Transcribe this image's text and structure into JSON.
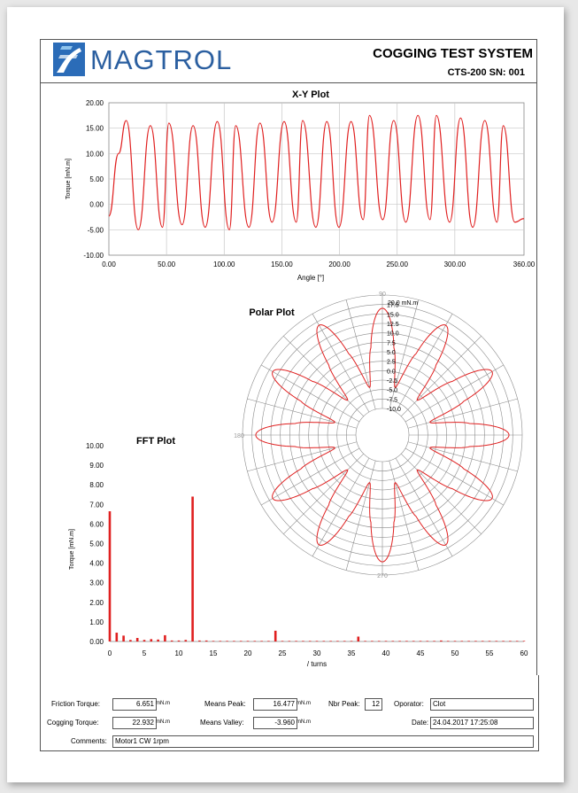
{
  "header": {
    "brand": "MAGTROL",
    "system_title": "COGGING TEST SYSTEM",
    "system_subtitle": "CTS-200  SN: 001"
  },
  "colors": {
    "brand_blue": "#2b5fa0",
    "curve_red": "#e02020",
    "grid": "#c8c8c8"
  },
  "xy_plot": {
    "title": "X-Y Plot",
    "xlabel": "Angle [°]",
    "ylabel": "Torque [mN.m]",
    "x_ticks": [
      "0.00",
      "50.00",
      "100.00",
      "150.00",
      "200.00",
      "250.00",
      "300.00",
      "360.00"
    ],
    "y_ticks": [
      "20.00",
      "15.00",
      "10.00",
      "5.00",
      "0.00",
      "-5.00",
      "-10.00"
    ]
  },
  "polar_plot": {
    "title": "Polar Plot",
    "top_label": "90",
    "left_label": "180",
    "bottom_label": "270",
    "unit_label": "20.0 mN.m",
    "ring_labels": [
      "17.5",
      "15.0",
      "12.5",
      "10.0",
      "7.5",
      "5.0",
      "2.5",
      "0.0",
      "-2.5",
      "-5.0",
      "-7.5",
      "-10.0"
    ]
  },
  "fft_plot": {
    "title": "FFT Plot",
    "xlabel": "/ turns",
    "ylabel": "Torque [mN.m]",
    "x_ticks": [
      "0",
      "5",
      "10",
      "15",
      "20",
      "25",
      "30",
      "35",
      "40",
      "45",
      "50",
      "55",
      "60"
    ],
    "y_ticks": [
      "10.00",
      "9.00",
      "8.00",
      "7.00",
      "6.00",
      "5.00",
      "4.00",
      "3.00",
      "2.00",
      "1.00",
      "0.00"
    ]
  },
  "footer": {
    "friction_label": "Friction Torque:",
    "friction_value": "6.651",
    "cogging_label": "Cogging Torque:",
    "cogging_value": "22.932",
    "unit": "mN.m",
    "means_peak_label": "Means Peak:",
    "means_peak_value": "16.477",
    "means_valley_label": "Means Valley:",
    "means_valley_value": "-3.960",
    "nbr_peak_label": "Nbr Peak:",
    "nbr_peak_value": "12",
    "operator_label": "Oporator:",
    "operator_value": "Clot",
    "date_label": "Date:",
    "date_value": "24.04.2017 17:25:08",
    "comments_label": "Comments:",
    "comments_value": "Motor1 CW 1rpm"
  },
  "chart_data": [
    {
      "type": "line",
      "title": "X-Y Plot",
      "xlabel": "Angle [°]",
      "ylabel": "Torque [mN.m]",
      "xlim": [
        0,
        360
      ],
      "ylim": [
        -10,
        20
      ],
      "grid": true,
      "series": [
        {
          "x": [
            0,
            8.4,
            15,
            25.5,
            36,
            46.5,
            52,
            63.5,
            73,
            83.5,
            94,
            104.5,
            110,
            121.5,
            131,
            141.5,
            152,
            162.5,
            168,
            179.5,
            189,
            199.5,
            210,
            220.5,
            226,
            237.5,
            247,
            257.5,
            268,
            278.5,
            284,
            295.5,
            305,
            315.5,
            326,
            336.5,
            342,
            352,
            360
          ],
          "y": [
            -2.3,
            10,
            16.5,
            -5,
            15.5,
            -4.5,
            16,
            -4,
            15.5,
            -4.5,
            16.3,
            -5,
            15.5,
            -4.5,
            16,
            -3.5,
            16.3,
            -3.5,
            16.5,
            -4.5,
            16.3,
            -4.5,
            16.3,
            -3,
            17.5,
            -3,
            16.5,
            -3.5,
            17.5,
            -3,
            17.5,
            -3.5,
            17,
            -4.5,
            16.5,
            -3.5,
            15.5,
            -3.5,
            -2.8
          ]
        }
      ]
    },
    {
      "type": "line",
      "title": "Polar Plot",
      "radial_range": [
        -10,
        20
      ],
      "series": [
        {
          "peaks": 12,
          "peak_value": 16.5,
          "valley_value": -4.0
        }
      ]
    },
    {
      "type": "bar",
      "title": "FFT Plot",
      "xlabel": "/ turns",
      "ylabel": "Torque [mN.m]",
      "xlim": [
        0,
        60
      ],
      "ylim": [
        0,
        10
      ],
      "x": [
        0,
        1,
        2,
        3,
        4,
        5,
        6,
        7,
        8,
        9,
        10,
        11,
        12,
        13,
        14,
        15,
        16,
        17,
        18,
        19,
        20,
        21,
        22,
        23,
        24,
        25,
        26,
        27,
        28,
        29,
        30,
        31,
        32,
        33,
        34,
        35,
        36,
        37,
        38,
        39,
        40,
        41,
        42,
        43,
        44,
        45,
        46,
        47,
        48,
        49,
        50,
        51,
        52,
        53,
        54,
        55,
        56,
        57,
        58,
        59,
        60
      ],
      "values": [
        6.65,
        0.45,
        0.3,
        0.08,
        0.18,
        0.08,
        0.12,
        0.1,
        0.32,
        0.05,
        0.05,
        0.08,
        7.4,
        0.05,
        0.05,
        0.03,
        0.03,
        0.03,
        0.03,
        0.03,
        0.03,
        0.03,
        0.03,
        0.03,
        0.55,
        0.03,
        0.03,
        0.03,
        0.03,
        0.03,
        0.03,
        0.03,
        0.03,
        0.03,
        0.03,
        0.03,
        0.25,
        0.03,
        0.03,
        0.03,
        0.03,
        0.03,
        0.03,
        0.03,
        0.03,
        0.03,
        0.03,
        0.03,
        0.05,
        0.03,
        0.03,
        0.03,
        0.03,
        0.03,
        0.03,
        0.03,
        0.03,
        0.03,
        0.03,
        0.03,
        0.03
      ]
    }
  ]
}
